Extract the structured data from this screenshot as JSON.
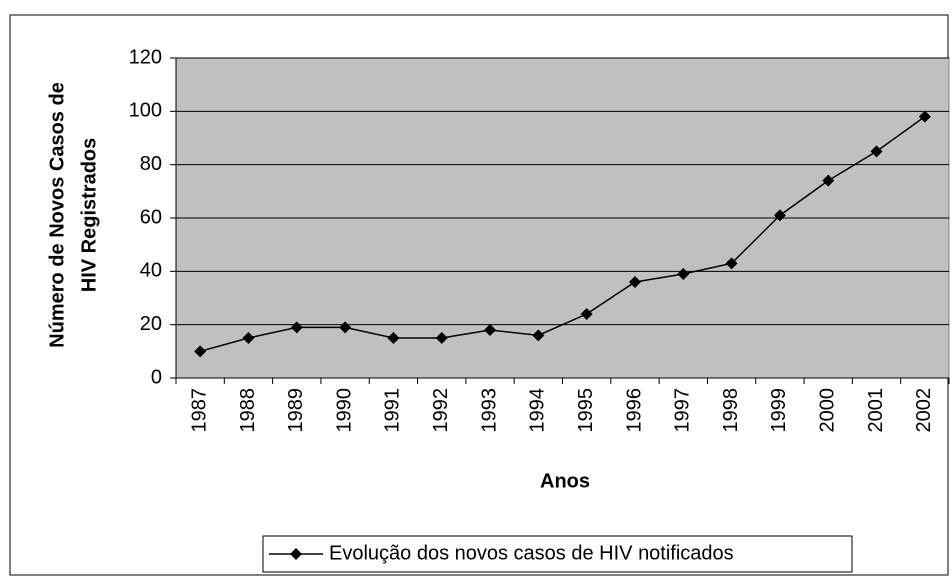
{
  "chart_data": {
    "type": "line",
    "x_label": "Anos",
    "y_label": [
      "Número de Novos Casos de",
      "HIV Registrados"
    ],
    "categories": [
      "1987",
      "1988",
      "1989",
      "1990",
      "1991",
      "1992",
      "1993",
      "1994",
      "1995",
      "1996",
      "1997",
      "1998",
      "1999",
      "2000",
      "2001",
      "2002"
    ],
    "series": [
      {
        "name": "Evolução dos novos casos de HIV notificados",
        "color": "#000000",
        "values": [
          10,
          15,
          19,
          19,
          15,
          15,
          18,
          16,
          24,
          36,
          39,
          43,
          61,
          74,
          85,
          98
        ]
      }
    ],
    "ylim": [
      0,
      120
    ],
    "yticks": [
      0,
      20,
      40,
      60,
      80,
      100,
      120
    ],
    "grid": true,
    "plot_background": "#c0c0c0",
    "legend": "bottom"
  }
}
